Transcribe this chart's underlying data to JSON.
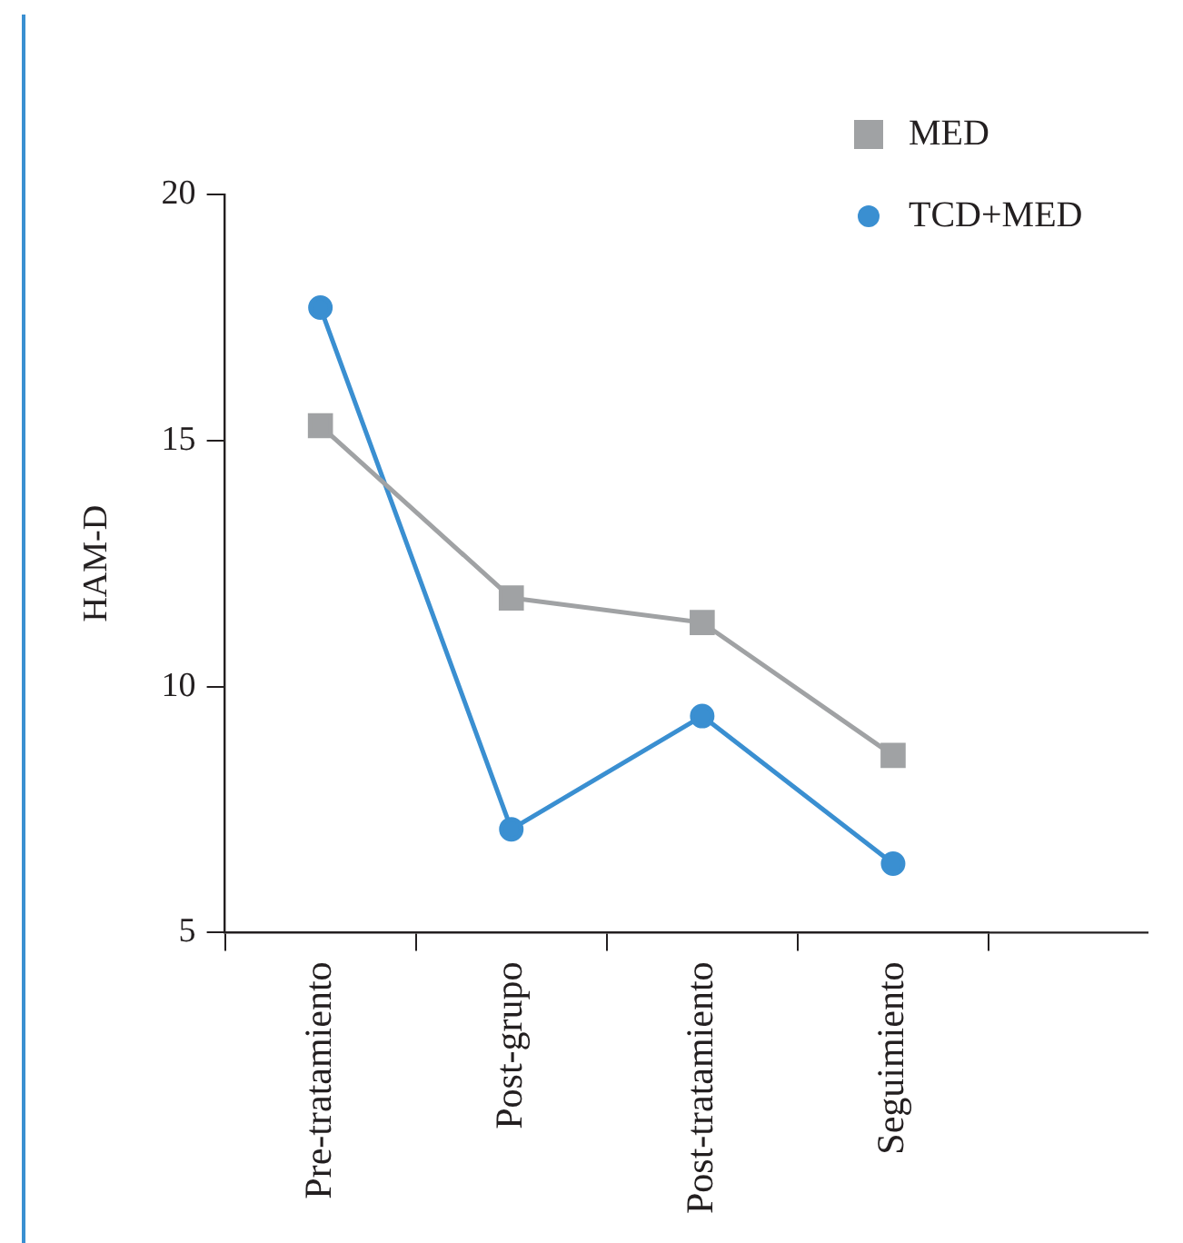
{
  "chart_data": {
    "type": "line",
    "ylabel": "HAM-D",
    "categories": [
      "Pre-tratamiento",
      "Post-grupo",
      "Post-tratamiento",
      "Seguimiento"
    ],
    "series": [
      {
        "name": "MED",
        "color": "#a0a2a4",
        "marker": "square",
        "values": [
          15.3,
          11.8,
          11.3,
          8.6
        ]
      },
      {
        "name": "TCD+MED",
        "color": "#3a8fd1",
        "marker": "circle",
        "values": [
          17.7,
          7.1,
          9.4,
          6.4
        ]
      }
    ],
    "ylim": [
      5,
      20
    ],
    "yticks": [
      5,
      10,
      15,
      20
    ],
    "grid": false,
    "legend": "top right"
  }
}
